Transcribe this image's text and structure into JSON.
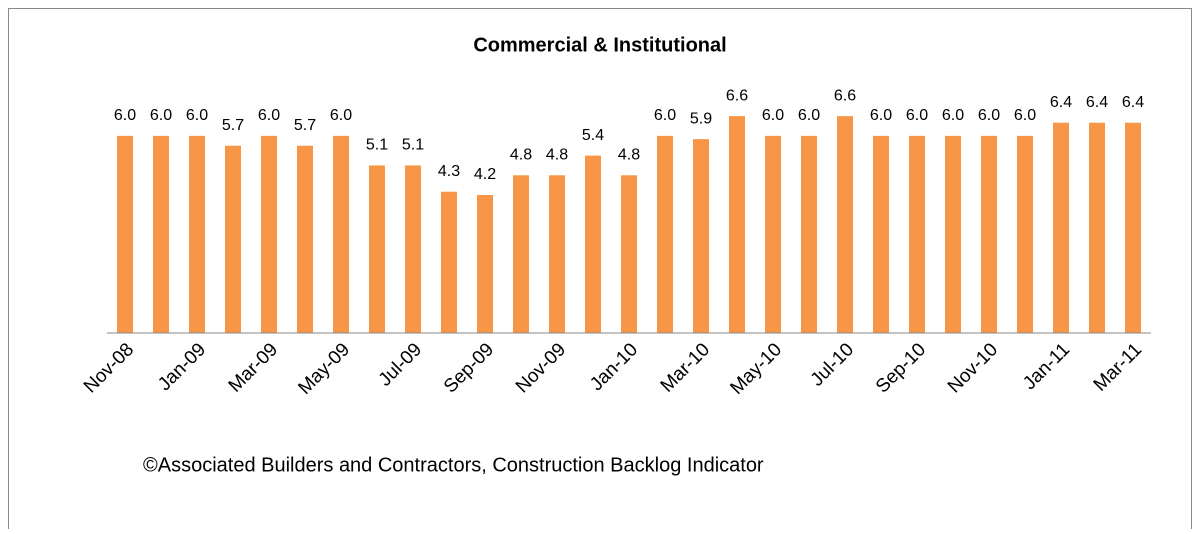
{
  "chart_data": {
    "type": "bar",
    "title": "Commercial & Institutional",
    "categories": [
      "Nov-08",
      null,
      "Jan-09",
      null,
      "Mar-09",
      null,
      "May-09",
      null,
      "Jul-09",
      null,
      "Sep-09",
      null,
      "Nov-09",
      null,
      "Jan-10",
      null,
      "Mar-10",
      null,
      "May-10",
      null,
      "Jul-10",
      null,
      "Sep-10",
      null,
      "Nov-10",
      null,
      "Jan-11",
      null,
      "Mar-11"
    ],
    "values": [
      6.0,
      6.0,
      6.0,
      5.7,
      6.0,
      5.7,
      6.0,
      5.1,
      5.1,
      4.3,
      4.2,
      4.8,
      4.8,
      5.4,
      4.8,
      6.0,
      5.9,
      6.6,
      6.0,
      6.0,
      6.6,
      6.0,
      6.0,
      6.0,
      6.0,
      6.0,
      6.4,
      6.4,
      6.4
    ],
    "value_labels": [
      "6.0",
      "6.0",
      "6.0",
      "5.7",
      "6.0",
      "5.7",
      "6.0",
      "5.1",
      "5.1",
      "4.3",
      "4.2",
      "4.8",
      "4.8",
      "5.4",
      "4.8",
      "6.0",
      "5.9",
      "6.6",
      "6.0",
      "6.0",
      "6.6",
      "6.0",
      "6.0",
      "6.0",
      "6.0",
      "6.0",
      "6.4",
      "6.4",
      "6.4"
    ],
    "color": "#f79646",
    "ylim": [
      0,
      7
    ],
    "footnote": "©Associated Builders and Contractors, Construction Backlog Indicator"
  }
}
